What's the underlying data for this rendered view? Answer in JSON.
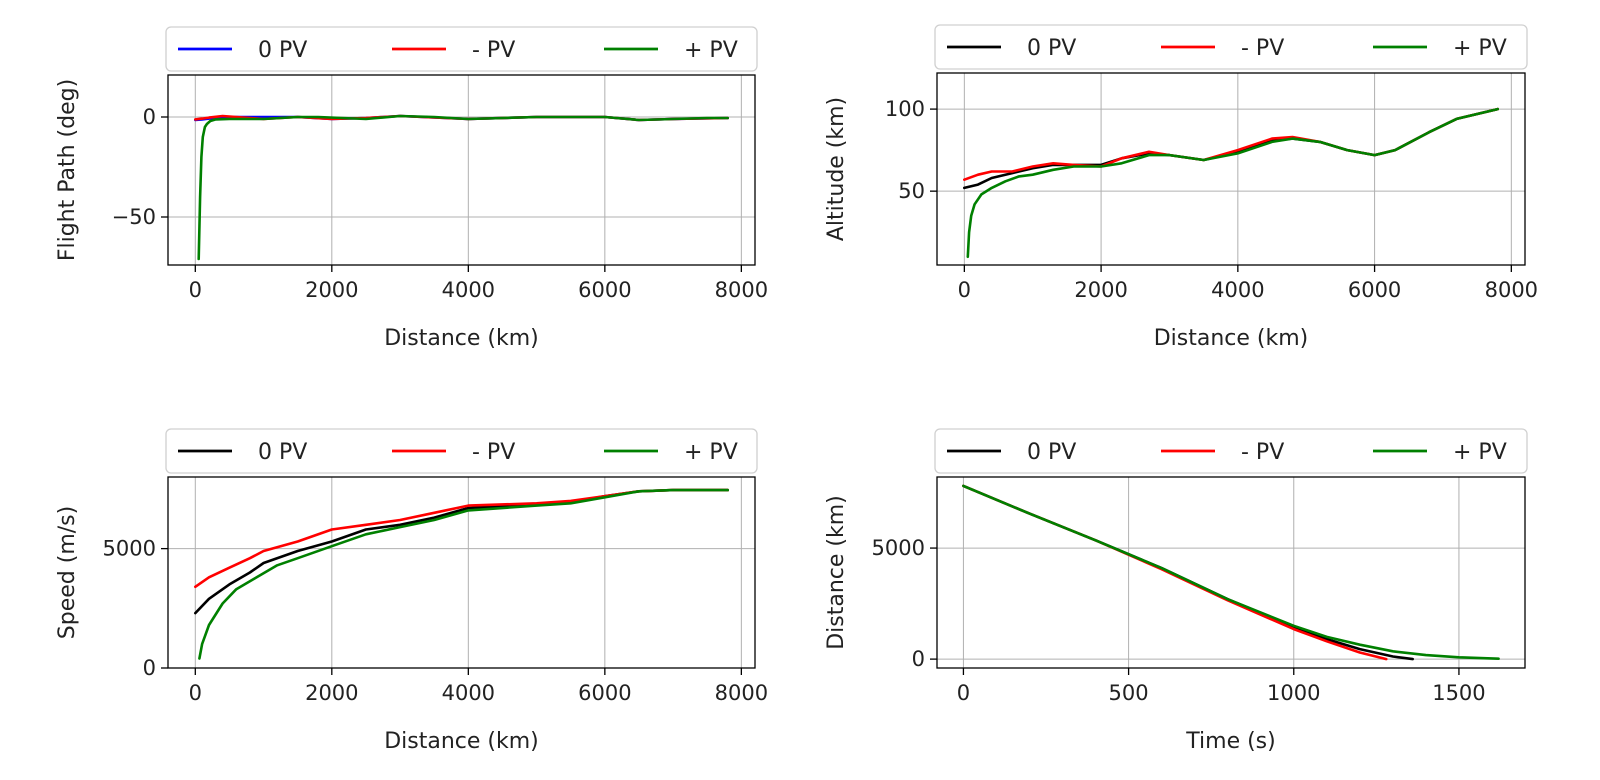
{
  "chart_data": [
    {
      "type": "line",
      "xlabel": "Distance (km)",
      "ylabel": "Flight Path (deg)",
      "xlim": [
        -400,
        8200
      ],
      "ylim": [
        -74,
        21
      ],
      "xticks": [
        0,
        2000,
        4000,
        6000,
        8000
      ],
      "yticks": [
        -50,
        0
      ],
      "grid": true,
      "legend": {
        "position": "top",
        "columns": 3
      },
      "series": [
        {
          "name": "0 PV",
          "color": "#0000ff",
          "x": [
            0,
            100,
            200,
            400,
            600,
            1000,
            1500,
            2000,
            2500,
            3000,
            4000,
            5000,
            6000,
            6500,
            7000,
            7800
          ],
          "y": [
            -1.5,
            -1.2,
            -0.8,
            -0.3,
            0,
            0,
            0,
            -1,
            -0.5,
            0.5,
            -1,
            0,
            0,
            -1.5,
            -1,
            -0.5
          ]
        },
        {
          "name": "- PV",
          "color": "#ff0000",
          "x": [
            0,
            100,
            200,
            400,
            600,
            1000,
            1500,
            2000,
            2500,
            3000,
            4000,
            5000,
            6000,
            6500,
            7000,
            7800
          ],
          "y": [
            -1.2,
            -0.8,
            -0.3,
            0.5,
            0,
            -1,
            0,
            -1,
            -0.5,
            0.5,
            -1,
            0,
            0,
            -1.5,
            -1,
            -0.5
          ]
        },
        {
          "name": "+ PV",
          "color": "#008000",
          "x": [
            50,
            70,
            90,
            110,
            140,
            170,
            220,
            300,
            500,
            1000,
            1500,
            1800,
            2500,
            3000,
            3500,
            4000,
            5000,
            5500,
            6000,
            6500,
            7000,
            7500,
            7800
          ],
          "y": [
            -71,
            -40,
            -20,
            -10,
            -5,
            -3.5,
            -2,
            -1.2,
            -1,
            -1,
            0,
            0,
            -1,
            0.5,
            0,
            -1,
            0,
            0,
            0,
            -1.5,
            -1,
            -0.5,
            -0.5
          ]
        }
      ]
    },
    {
      "type": "line",
      "xlabel": "Distance (km)",
      "ylabel": "Altitude (km)",
      "xlim": [
        -400,
        8200
      ],
      "ylim": [
        5,
        122
      ],
      "xticks": [
        0,
        2000,
        4000,
        6000,
        8000
      ],
      "yticks": [
        50,
        100
      ],
      "grid": true,
      "legend": {
        "position": "top",
        "columns": 3
      },
      "series": [
        {
          "name": "0 PV",
          "color": "#000000",
          "x": [
            0,
            200,
            400,
            700,
            1000,
            1300,
            1600,
            2000,
            2300,
            2700,
            3000,
            3500,
            4000,
            4500,
            4800,
            5200,
            5600,
            6000,
            6300,
            6800,
            7200,
            7800
          ],
          "y": [
            52,
            54,
            58,
            61,
            64,
            66,
            66,
            66,
            70,
            73,
            72,
            69,
            74,
            81,
            82,
            80,
            75,
            72,
            75,
            86,
            94,
            100
          ]
        },
        {
          "name": "- PV",
          "color": "#ff0000",
          "x": [
            0,
            200,
            400,
            700,
            1000,
            1300,
            1600,
            2000,
            2300,
            2700,
            3000,
            3500,
            4000,
            4500,
            4800,
            5200,
            5600,
            6000,
            6300,
            6800,
            7200,
            7800
          ],
          "y": [
            57,
            60,
            62,
            62,
            65,
            67,
            66,
            65,
            70,
            74,
            72,
            69,
            75,
            82,
            83,
            80,
            75,
            72,
            75,
            86,
            94,
            100
          ]
        },
        {
          "name": "+ PV",
          "color": "#008000",
          "x": [
            50,
            70,
            100,
            150,
            250,
            400,
            600,
            800,
            1000,
            1300,
            1600,
            2000,
            2300,
            2700,
            3000,
            3500,
            4000,
            4500,
            4800,
            5200,
            5600,
            6000,
            6300,
            6800,
            7200,
            7800
          ],
          "y": [
            10,
            25,
            35,
            42,
            48,
            52,
            56,
            59,
            60,
            63,
            65,
            65,
            67,
            72,
            72,
            69,
            73,
            80,
            82,
            80,
            75,
            72,
            75,
            86,
            94,
            100
          ]
        }
      ]
    },
    {
      "type": "line",
      "xlabel": "Distance (km)",
      "ylabel": "Speed (m/s)",
      "xlim": [
        -400,
        8200
      ],
      "ylim": [
        0,
        8000
      ],
      "xticks": [
        0,
        2000,
        4000,
        6000,
        8000
      ],
      "yticks": [
        0,
        5000
      ],
      "grid": true,
      "legend": {
        "position": "top",
        "columns": 3
      },
      "series": [
        {
          "name": "0 PV",
          "color": "#000000",
          "x": [
            0,
            200,
            500,
            800,
            1000,
            1500,
            2000,
            2500,
            3000,
            3500,
            4000,
            5000,
            5500,
            6000,
            6500,
            7000,
            7800
          ],
          "y": [
            2300,
            2900,
            3500,
            4000,
            4400,
            4900,
            5300,
            5800,
            6000,
            6300,
            6700,
            6850,
            6950,
            7200,
            7400,
            7450,
            7450
          ]
        },
        {
          "name": "- PV",
          "color": "#ff0000",
          "x": [
            0,
            200,
            500,
            800,
            1000,
            1500,
            2000,
            2500,
            3000,
            3500,
            4000,
            5000,
            5500,
            6000,
            6500,
            7000,
            7800
          ],
          "y": [
            3400,
            3800,
            4200,
            4600,
            4900,
            5300,
            5800,
            6000,
            6200,
            6500,
            6800,
            6900,
            7000,
            7200,
            7400,
            7450,
            7450
          ]
        },
        {
          "name": "+ PV",
          "color": "#008000",
          "x": [
            60,
            100,
            200,
            400,
            600,
            900,
            1200,
            1500,
            2000,
            2500,
            3000,
            3500,
            4000,
            5000,
            5500,
            6000,
            6500,
            7000,
            7800
          ],
          "y": [
            400,
            1000,
            1800,
            2700,
            3300,
            3800,
            4300,
            4600,
            5100,
            5600,
            5900,
            6200,
            6600,
            6800,
            6900,
            7150,
            7400,
            7450,
            7450
          ]
        }
      ]
    },
    {
      "type": "line",
      "xlabel": "Time (s)",
      "ylabel": "Distance (km)",
      "xlim": [
        -80,
        1700
      ],
      "ylim": [
        -400,
        8200
      ],
      "xticks": [
        0,
        500,
        1000,
        1500
      ],
      "yticks": [
        0,
        5000
      ],
      "grid": true,
      "legend": {
        "position": "top",
        "columns": 3
      },
      "series": [
        {
          "name": "0 PV",
          "color": "#000000",
          "x": [
            0,
            200,
            400,
            600,
            800,
            1000,
            1100,
            1200,
            1300,
            1360
          ],
          "y": [
            7800,
            6550,
            5350,
            4100,
            2700,
            1450,
            900,
            450,
            120,
            0
          ]
        },
        {
          "name": "- PV",
          "color": "#ff0000",
          "x": [
            0,
            200,
            400,
            600,
            800,
            1000,
            1100,
            1200,
            1280
          ],
          "y": [
            7800,
            6550,
            5350,
            4050,
            2650,
            1350,
            800,
            300,
            0
          ]
        },
        {
          "name": "+ PV",
          "color": "#008000",
          "x": [
            0,
            200,
            400,
            600,
            800,
            1000,
            1100,
            1200,
            1300,
            1400,
            1500,
            1620
          ],
          "y": [
            7800,
            6550,
            5350,
            4100,
            2700,
            1500,
            1000,
            650,
            350,
            180,
            80,
            20
          ]
        }
      ]
    }
  ]
}
